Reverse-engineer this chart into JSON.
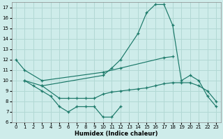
{
  "xlabel": "Humidex (Indice chaleur)",
  "bg_color": "#ceecea",
  "grid_color": "#b2d8d4",
  "line_color": "#1a7868",
  "xlim": [
    -0.5,
    23.5
  ],
  "ylim": [
    6,
    17.5
  ],
  "xticks": [
    0,
    1,
    2,
    3,
    4,
    5,
    6,
    7,
    8,
    9,
    10,
    11,
    12,
    13,
    14,
    15,
    16,
    17,
    18,
    19,
    20,
    21,
    22,
    23
  ],
  "yticks": [
    6,
    7,
    8,
    9,
    10,
    11,
    12,
    13,
    14,
    15,
    16,
    17
  ],
  "line_bell_x": [
    3,
    10,
    11,
    12,
    14,
    15,
    16,
    17,
    18,
    19,
    20,
    21,
    22,
    23
  ],
  "line_bell_y": [
    9.5,
    10.5,
    11.2,
    12.0,
    14.5,
    16.5,
    17.3,
    17.3,
    15.3,
    10.0,
    10.5,
    10.0,
    8.5,
    7.5
  ],
  "line_diag_x": [
    0,
    1,
    3,
    10,
    12,
    17,
    18
  ],
  "line_diag_y": [
    12.0,
    11.0,
    10.0,
    10.8,
    11.2,
    12.2,
    12.3
  ],
  "line_ucurve_x": [
    1,
    2,
    3,
    4,
    5,
    6,
    7,
    8,
    9,
    10,
    11,
    12
  ],
  "line_ucurve_y": [
    10.0,
    9.5,
    9.0,
    8.5,
    7.5,
    7.0,
    7.5,
    7.5,
    7.5,
    6.5,
    6.5,
    7.5
  ],
  "line_flat_x": [
    1,
    3,
    5,
    6,
    7,
    8,
    9,
    10,
    11,
    12,
    13,
    14,
    15,
    16,
    17,
    18,
    19,
    20,
    21,
    22,
    23
  ],
  "line_flat_y": [
    10.0,
    9.5,
    8.3,
    8.3,
    8.3,
    8.3,
    8.3,
    8.7,
    8.9,
    9.0,
    9.1,
    9.2,
    9.3,
    9.5,
    9.7,
    9.8,
    9.8,
    9.8,
    9.5,
    9.0,
    8.0
  ]
}
